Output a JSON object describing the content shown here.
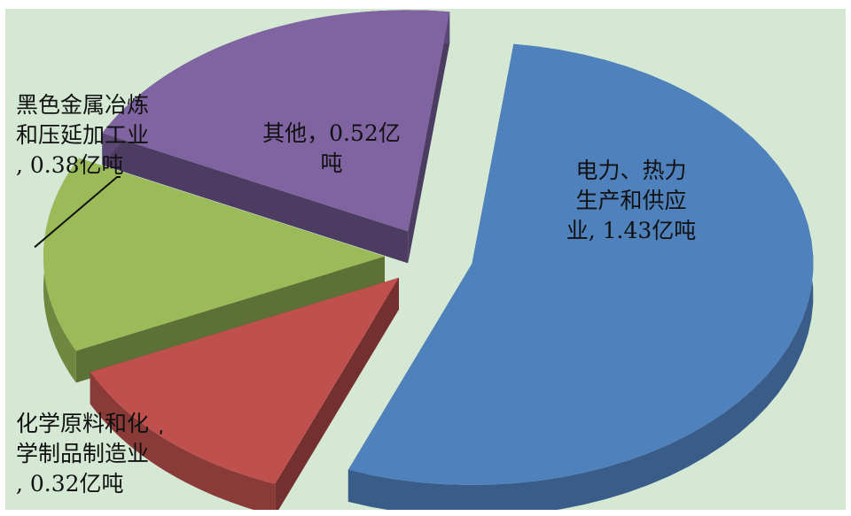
{
  "chart_data": {
    "type": "pie",
    "style": "3d-exploded",
    "slices": [
      {
        "name": "电力、热力生产和供应业",
        "value": 1.43,
        "unit": "亿吨",
        "label": "电力、热力\n生产和供应\n业, 1.43亿吨",
        "color": "#4f81bd"
      },
      {
        "name": "化学原料和化学制品制造业",
        "value": 0.32,
        "unit": "亿吨",
        "label": "化学原料和化\n学制品制造业\n, 0.32亿吨",
        "color": "#c0504d"
      },
      {
        "name": "黑色金属冶炼和压延加工业",
        "value": 0.38,
        "unit": "亿吨",
        "label": "黑色金属冶炼\n和压延加工业\n, 0.38亿吨",
        "color": "#9bbb59"
      },
      {
        "name": "其他",
        "value": 0.52,
        "unit": "亿吨",
        "label": "其他，0.52亿\n吨",
        "color": "#8064a2"
      }
    ],
    "legend": "none",
    "data_labels": "category, value"
  }
}
